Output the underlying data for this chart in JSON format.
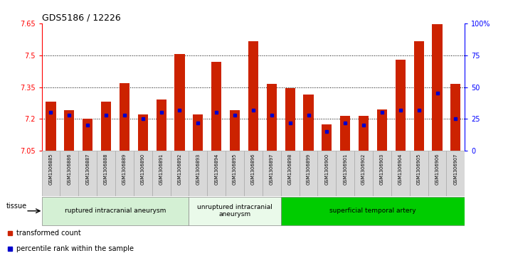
{
  "title": "GDS5186 / 12226",
  "samples": [
    "GSM1306885",
    "GSM1306886",
    "GSM1306887",
    "GSM1306888",
    "GSM1306889",
    "GSM1306890",
    "GSM1306891",
    "GSM1306892",
    "GSM1306893",
    "GSM1306894",
    "GSM1306895",
    "GSM1306896",
    "GSM1306897",
    "GSM1306898",
    "GSM1306899",
    "GSM1306900",
    "GSM1306901",
    "GSM1306902",
    "GSM1306903",
    "GSM1306904",
    "GSM1306905",
    "GSM1306906",
    "GSM1306907"
  ],
  "bar_heights": [
    7.28,
    7.24,
    7.2,
    7.28,
    7.37,
    7.22,
    7.29,
    7.505,
    7.22,
    7.47,
    7.24,
    7.565,
    7.365,
    7.345,
    7.315,
    7.175,
    7.215,
    7.215,
    7.245,
    7.48,
    7.565,
    7.645,
    7.365
  ],
  "percentile_ranks": [
    30,
    28,
    20,
    28,
    28,
    25,
    30,
    32,
    22,
    30,
    28,
    32,
    28,
    22,
    28,
    15,
    22,
    20,
    30,
    32,
    32,
    45,
    25
  ],
  "ylim_left": [
    7.05,
    7.65
  ],
  "ylim_right": [
    0,
    100
  ],
  "yticks_left": [
    7.05,
    7.2,
    7.35,
    7.5,
    7.65
  ],
  "yticks_right": [
    0,
    25,
    50,
    75,
    100
  ],
  "ytick_labels_left": [
    "7.05",
    "7.2",
    "7.35",
    "7.5",
    "7.65"
  ],
  "ytick_labels_right": [
    "0",
    "25",
    "50",
    "75",
    "100%"
  ],
  "hlines": [
    7.2,
    7.35,
    7.5
  ],
  "groups": [
    {
      "label": "ruptured intracranial aneurysm",
      "start": 0,
      "end": 8,
      "color": "#d4f0d4"
    },
    {
      "label": "unruptured intracranial\naneurysm",
      "start": 8,
      "end": 13,
      "color": "#eafaea"
    },
    {
      "label": "superficial temporal artery",
      "start": 13,
      "end": 23,
      "color": "#00cc00"
    }
  ],
  "bar_color": "#cc2200",
  "square_color": "#0000cc",
  "fig_bg_color": "#ffffff",
  "plot_bg_color": "#ffffff",
  "tick_area_bg": "#d8d8d8",
  "legend_items": [
    {
      "label": "transformed count",
      "color": "#cc2200"
    },
    {
      "label": "percentile rank within the sample",
      "color": "#0000cc"
    }
  ],
  "tissue_label": "tissue",
  "bar_bottom": 7.05
}
